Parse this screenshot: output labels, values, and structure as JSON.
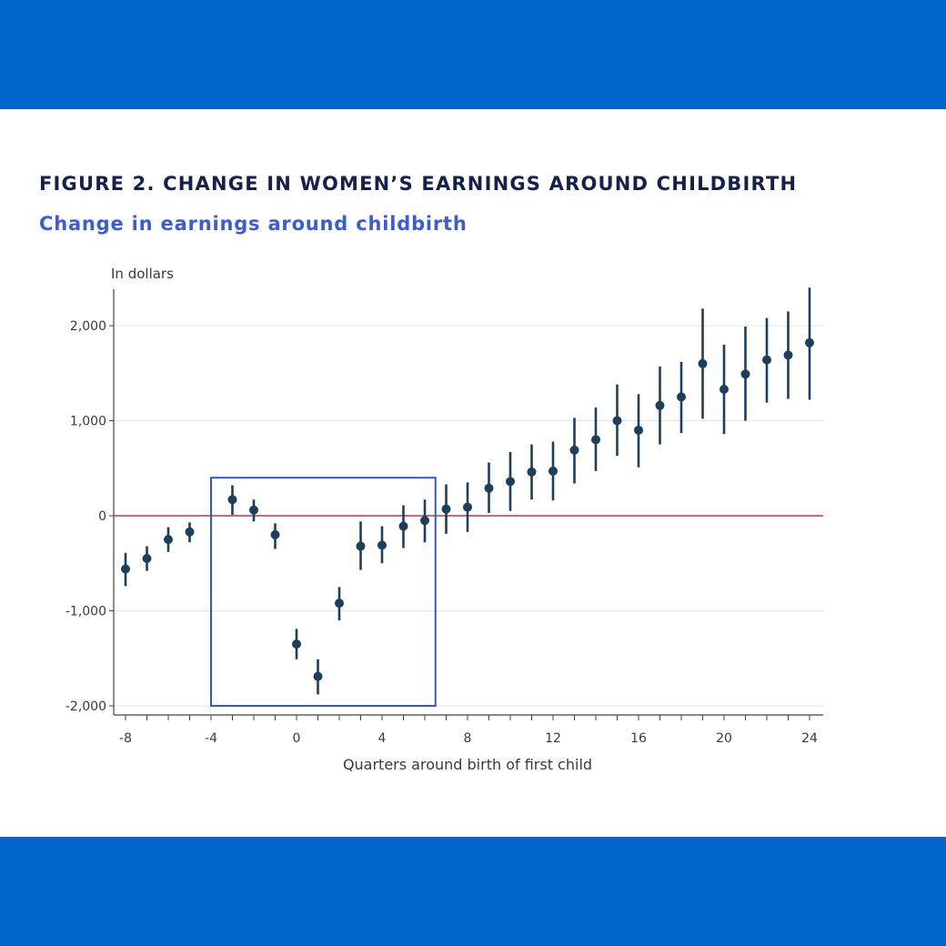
{
  "colors": {
    "banner": "#0066cc",
    "title": "#14214d",
    "subtitle": "#3b5bdb",
    "marker": "#1c3f5e",
    "zero_line": "#b03a5b",
    "highlight_box": "#3355e0",
    "grid": "#e6e6e6"
  },
  "header": {
    "title": "FIGURE 2. CHANGE IN WOMEN’S EARNINGS AROUND CHILDBIRTH",
    "subtitle": "Change in earnings around childbirth"
  },
  "chart_data": {
    "type": "scatter",
    "ylabel": "In dollars",
    "xlabel": "Quarters around birth of first child",
    "xlim": [
      -8,
      24
    ],
    "ylim": [
      -2000,
      2200
    ],
    "xticks": [
      -8,
      -4,
      0,
      4,
      8,
      12,
      16,
      20,
      24
    ],
    "xtick_labels": [
      "-8",
      "-4",
      "0",
      "4",
      "8",
      "12",
      "16",
      "20",
      "24"
    ],
    "yticks": [
      2000,
      1000,
      0,
      -1000,
      -2000
    ],
    "ytick_labels": [
      "2,000",
      "1,000",
      "0",
      "-1,000",
      "-2,000"
    ],
    "grid": true,
    "reference_line_y": 0,
    "highlight_region": {
      "x": [
        -4,
        6.5
      ],
      "y": [
        -2000,
        400
      ]
    },
    "series": [
      {
        "error_bars": true,
        "points": [
          {
            "x": -8,
            "y": -560,
            "lo": -740,
            "hi": -390
          },
          {
            "x": -7,
            "y": -450,
            "lo": -580,
            "hi": -320
          },
          {
            "x": -6,
            "y": -250,
            "lo": -380,
            "hi": -120
          },
          {
            "x": -5,
            "y": -170,
            "lo": -280,
            "hi": -70
          },
          {
            "x": -3,
            "y": 170,
            "lo": 10,
            "hi": 320
          },
          {
            "x": -2,
            "y": 60,
            "lo": -60,
            "hi": 170
          },
          {
            "x": -1,
            "y": -200,
            "lo": -350,
            "hi": -80
          },
          {
            "x": 0,
            "y": -1350,
            "lo": -1510,
            "hi": -1190
          },
          {
            "x": 1,
            "y": -1690,
            "lo": -1880,
            "hi": -1510
          },
          {
            "x": 2,
            "y": -920,
            "lo": -1100,
            "hi": -750
          },
          {
            "x": 3,
            "y": -320,
            "lo": -570,
            "hi": -60
          },
          {
            "x": 4,
            "y": -310,
            "lo": -500,
            "hi": -110
          },
          {
            "x": 5,
            "y": -110,
            "lo": -340,
            "hi": 110
          },
          {
            "x": 6,
            "y": -50,
            "lo": -280,
            "hi": 170
          },
          {
            "x": 7,
            "y": 70,
            "lo": -190,
            "hi": 330
          },
          {
            "x": 8,
            "y": 90,
            "lo": -170,
            "hi": 350
          },
          {
            "x": 9,
            "y": 290,
            "lo": 30,
            "hi": 560
          },
          {
            "x": 10,
            "y": 360,
            "lo": 50,
            "hi": 670
          },
          {
            "x": 11,
            "y": 460,
            "lo": 170,
            "hi": 750
          },
          {
            "x": 12,
            "y": 470,
            "lo": 160,
            "hi": 780
          },
          {
            "x": 13,
            "y": 690,
            "lo": 340,
            "hi": 1030
          },
          {
            "x": 14,
            "y": 800,
            "lo": 470,
            "hi": 1140
          },
          {
            "x": 15,
            "y": 1000,
            "lo": 630,
            "hi": 1380
          },
          {
            "x": 16,
            "y": 900,
            "lo": 510,
            "hi": 1280
          },
          {
            "x": 17,
            "y": 1160,
            "lo": 750,
            "hi": 1570
          },
          {
            "x": 18,
            "y": 1250,
            "lo": 870,
            "hi": 1620
          },
          {
            "x": 19,
            "y": 1600,
            "lo": 1020,
            "hi": 2180
          },
          {
            "x": 20,
            "y": 1330,
            "lo": 860,
            "hi": 1800
          },
          {
            "x": 21,
            "y": 1490,
            "lo": 1000,
            "hi": 1990
          },
          {
            "x": 22,
            "y": 1640,
            "lo": 1190,
            "hi": 2080
          },
          {
            "x": 23,
            "y": 1690,
            "lo": 1230,
            "hi": 2150
          },
          {
            "x": 24,
            "y": 1820,
            "lo": 1220,
            "hi": 2400
          }
        ]
      }
    ]
  }
}
